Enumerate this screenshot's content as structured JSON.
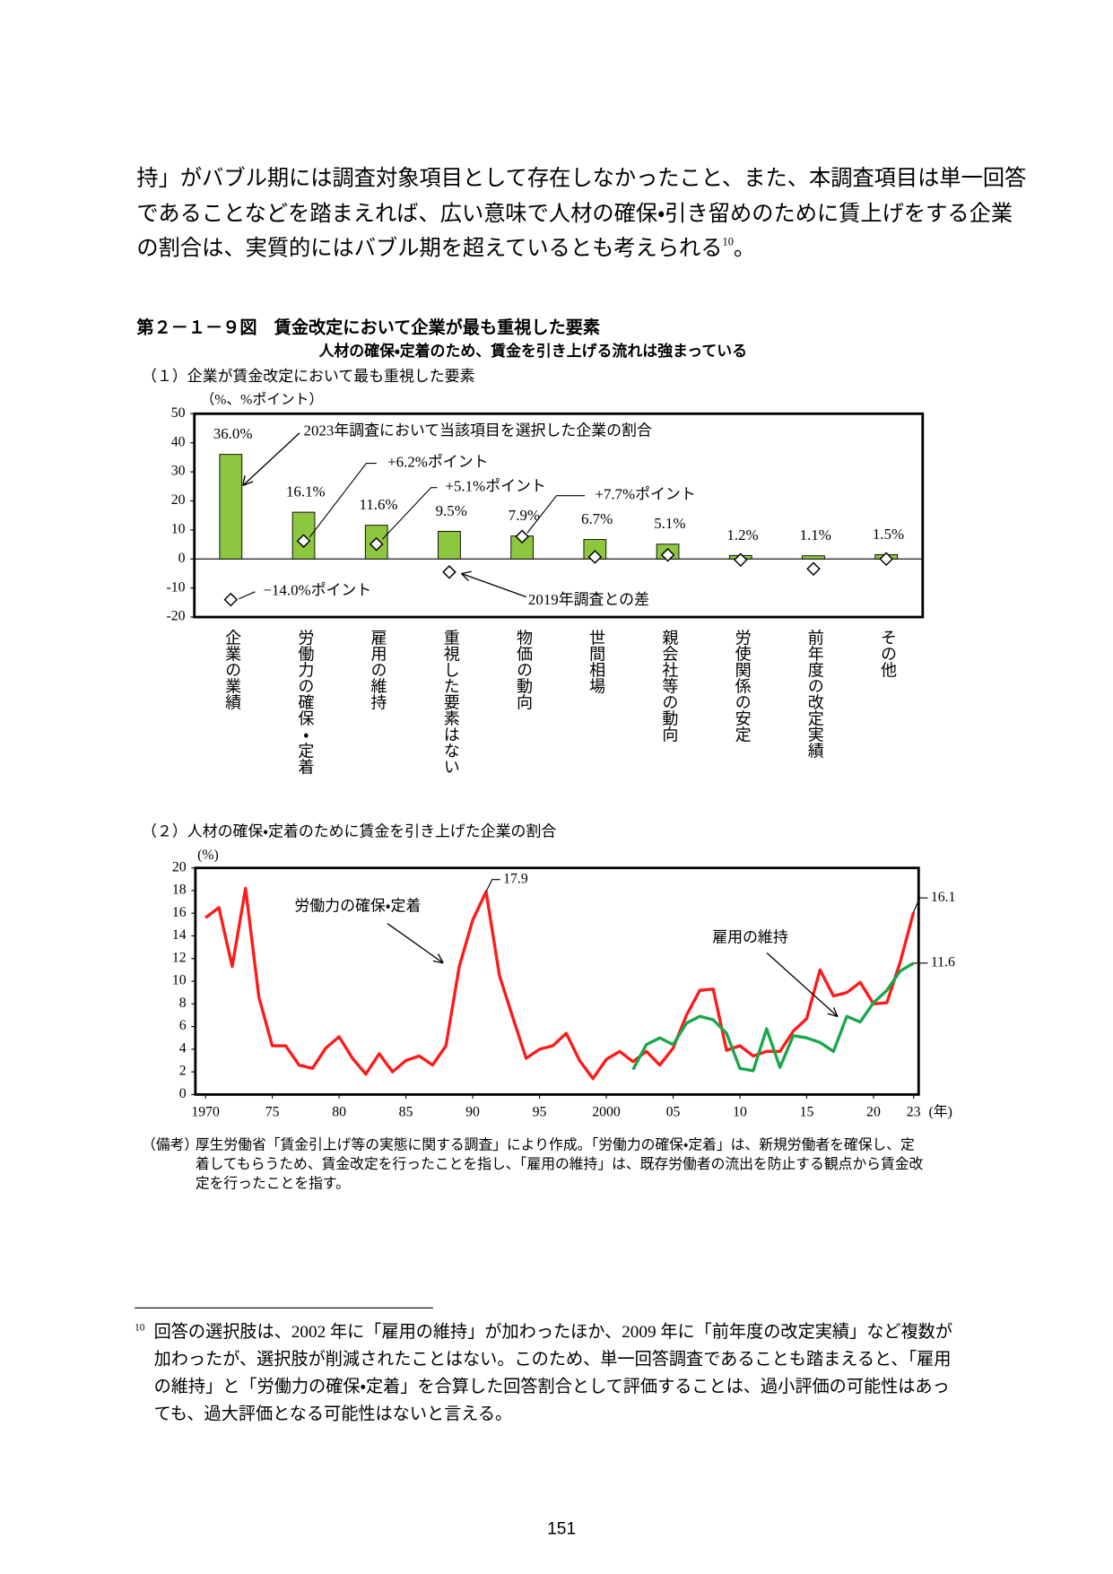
{
  "body": {
    "lines": [
      "持」がバブル期には調査対象項目として存在しなかったこと、また、本調査項目は単一回答",
      "であることなどを踏まえれば、広い意味で人材の確保・引き留めのために賃上げをする企業",
      "の割合は、実質的にはバブル期を超えているとも考えられる"
    ],
    "line3_sup": "10",
    "line3_end": "。"
  },
  "figure": {
    "title": "第２－１－９図　賃金改定において企業が最も重視した要素",
    "subtitle": "人材の確保・定着のため、賃金を引き上げる流れは強まっている",
    "panel1": "（１）企業が賃金改定において最も重視した要素",
    "panel2": "（２）人材の確保・定着のために賃金を引き上げた企業の割合"
  },
  "chart_data": [
    {
      "type": "bar",
      "unit_label": "（%、%ポイント）",
      "categories": [
        "企業の業績",
        "労働力の確保・定着",
        "雇用の維持",
        "重視した要素はない",
        "物価の動向",
        "世間相場",
        "親会社等の動向",
        "労使関係の安定",
        "前年度の改定実績",
        "その他"
      ],
      "series": [
        {
          "name": "2023年調査において当該項目を選択した企業の割合",
          "type": "bar",
          "color": "#8dc63f",
          "values": [
            36.0,
            16.1,
            11.6,
            9.5,
            7.9,
            6.7,
            5.1,
            1.2,
            1.1,
            1.5
          ],
          "value_labels": [
            "36.0%",
            "16.1%",
            "11.6%",
            "9.5%",
            "7.9%",
            "6.7%",
            "5.1%",
            "1.2%",
            "1.1%",
            "1.5%"
          ]
        },
        {
          "name": "2019年調査との差",
          "type": "scatter",
          "marker": "diamond",
          "color": "#ffffff",
          "values": [
            -14.0,
            6.2,
            5.1,
            -4.5,
            7.7,
            0.7,
            1.4,
            -0.3,
            -3.4,
            0.0
          ],
          "value_labels": [
            "−14.0%ポイント",
            "+6.2%ポイント",
            "+5.1%ポイント",
            null,
            "+7.7%ポイント",
            null,
            null,
            null,
            null,
            null
          ]
        }
      ],
      "ylim": [
        -20,
        50
      ],
      "yticks": [
        -20,
        -10,
        0,
        10,
        20,
        30,
        40,
        50
      ],
      "zero_line": true
    },
    {
      "type": "line",
      "unit_label": "(%)",
      "x_unit_label": "(年)",
      "x": [
        1970,
        1971,
        1972,
        1973,
        1974,
        1975,
        1976,
        1977,
        1978,
        1979,
        1980,
        1981,
        1982,
        1983,
        1984,
        1985,
        1986,
        1987,
        1988,
        1989,
        1990,
        1991,
        1992,
        1993,
        1994,
        1995,
        1996,
        1997,
        1998,
        1999,
        2000,
        2001,
        2002,
        2003,
        2004,
        2005,
        2006,
        2007,
        2008,
        2009,
        2010,
        2011,
        2012,
        2013,
        2014,
        2015,
        2016,
        2017,
        2018,
        2019,
        2020,
        2021,
        2022,
        2023
      ],
      "series": [
        {
          "name": "労働力の確保・定着",
          "color": "#ff1a1a",
          "values": [
            15.6,
            16.5,
            11.3,
            18.2,
            8.6,
            4.3,
            4.3,
            2.6,
            2.3,
            4.1,
            5.1,
            3.2,
            1.8,
            3.6,
            2.0,
            3.0,
            3.4,
            2.6,
            4.3,
            11.3,
            15.4,
            17.9,
            10.5,
            6.8,
            3.2,
            4.0,
            4.3,
            5.4,
            3.0,
            1.4,
            3.1,
            3.8,
            2.9,
            3.8,
            2.6,
            4.1,
            7.0,
            9.2,
            9.3,
            3.9,
            4.3,
            3.4,
            3.8,
            3.8,
            5.6,
            6.7,
            11.0,
            8.7,
            9.0,
            9.9,
            8.0,
            8.1,
            11.7,
            16.1
          ]
        },
        {
          "name": "雇用の維持",
          "color": "#1aa64a",
          "values": [
            null,
            null,
            null,
            null,
            null,
            null,
            null,
            null,
            null,
            null,
            null,
            null,
            null,
            null,
            null,
            null,
            null,
            null,
            null,
            null,
            null,
            null,
            null,
            null,
            null,
            null,
            null,
            null,
            null,
            null,
            null,
            null,
            2.2,
            4.4,
            5.0,
            4.4,
            6.3,
            6.9,
            6.6,
            5.4,
            2.3,
            2.1,
            5.8,
            2.4,
            5.2,
            5.0,
            4.6,
            3.8,
            6.9,
            6.4,
            8.1,
            9.2,
            10.9,
            11.6
          ]
        }
      ],
      "xlim": [
        1970,
        2023
      ],
      "xticks": [
        1970,
        {
          "value": 1975,
          "label": "75"
        },
        {
          "value": 1980,
          "label": "80"
        },
        {
          "value": 1985,
          "label": "85"
        },
        {
          "value": 1990,
          "label": "90"
        },
        {
          "value": 1995,
          "label": "95"
        },
        2000,
        {
          "value": 2005,
          "label": "05"
        },
        {
          "value": 2010,
          "label": "10"
        },
        {
          "value": 2015,
          "label": "15"
        },
        {
          "value": 2020,
          "label": "20"
        },
        {
          "value": 2023,
          "label": "23"
        }
      ],
      "ylim": [
        0,
        20
      ],
      "yticks": [
        0,
        2,
        4,
        6,
        8,
        10,
        12,
        14,
        16,
        18,
        20
      ]
    }
  ],
  "note": {
    "label": "（備考）",
    "lines": [
      "厚生労働省「賃金引上げ等の実態に関する調査」により作成。「労働力の確保・定着」は、新規労働者を確保し、定",
      "着してもらうため、賃金改定を行ったことを指し、「雇用の維持」は、既存労働者の流出を防止する観点から賃金改",
      "定を行ったことを指す。"
    ]
  },
  "footnote": {
    "number": "10",
    "lines": [
      "回答の選択肢は、2002 年に「雇用の維持」が加わったほか、2009 年に「前年度の改定実績」など複数が",
      "加わったが、選択肢が削減されたことはない。このため、単一回答調査であることも踏まえると、「雇用",
      "の維持」と「労働力の確保・定着」を合算した回答割合として評価することは、過小評価の可能性はあっ",
      "ても、過大評価となる可能性はないと言える。"
    ]
  },
  "page_number": "151"
}
